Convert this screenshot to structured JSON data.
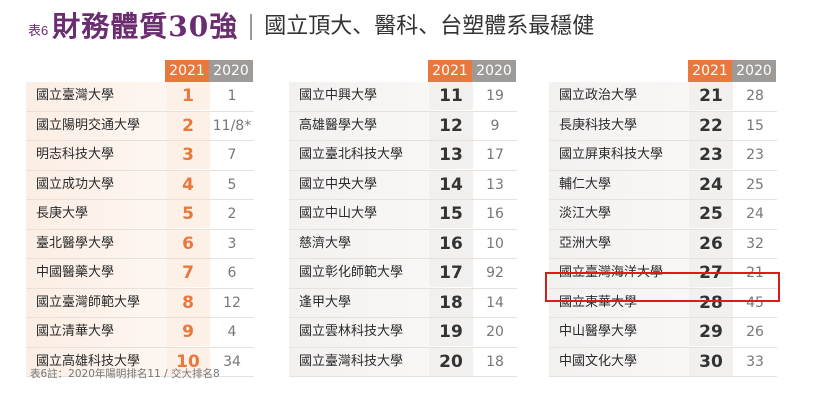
{
  "header": {
    "tag": "表6",
    "title": "財務體質30強",
    "subtitle": "國立頂大、醫科、台塑體系最穩健"
  },
  "years": {
    "current": "2021",
    "previous": "2020"
  },
  "tables": [
    {
      "rows": [
        {
          "name": "國立臺灣大學",
          "rank": "1",
          "prev": "1"
        },
        {
          "name": "國立陽明交通大學",
          "rank": "2",
          "prev": "11/8*"
        },
        {
          "name": "明志科技大學",
          "rank": "3",
          "prev": "7"
        },
        {
          "name": "國立成功大學",
          "rank": "4",
          "prev": "5"
        },
        {
          "name": "長庚大學",
          "rank": "5",
          "prev": "2"
        },
        {
          "name": "臺北醫學大學",
          "rank": "6",
          "prev": "3"
        },
        {
          "name": "中國醫藥大學",
          "rank": "7",
          "prev": "6"
        },
        {
          "name": "國立臺灣師範大學",
          "rank": "8",
          "prev": "12"
        },
        {
          "name": "國立清華大學",
          "rank": "9",
          "prev": "4"
        },
        {
          "name": "國立高雄科技大學",
          "rank": "10",
          "prev": "34"
        }
      ]
    },
    {
      "rows": [
        {
          "name": "國立中興大學",
          "rank": "11",
          "prev": "19"
        },
        {
          "name": "高雄醫學大學",
          "rank": "12",
          "prev": "9"
        },
        {
          "name": "國立臺北科技大學",
          "rank": "13",
          "prev": "17"
        },
        {
          "name": "國立中央大學",
          "rank": "14",
          "prev": "13"
        },
        {
          "name": "國立中山大學",
          "rank": "15",
          "prev": "16"
        },
        {
          "name": "慈濟大學",
          "rank": "16",
          "prev": "10"
        },
        {
          "name": "國立彰化師範大學",
          "rank": "17",
          "prev": "92"
        },
        {
          "name": "逢甲大學",
          "rank": "18",
          "prev": "14"
        },
        {
          "name": "國立雲林科技大學",
          "rank": "19",
          "prev": "20"
        },
        {
          "name": "國立臺灣科技大學",
          "rank": "20",
          "prev": "18"
        }
      ]
    },
    {
      "rows": [
        {
          "name": "國立政治大學",
          "rank": "21",
          "prev": "28"
        },
        {
          "name": "長庚科技大學",
          "rank": "22",
          "prev": "15"
        },
        {
          "name": "國立屏東科技大學",
          "rank": "23",
          "prev": "23"
        },
        {
          "name": "輔仁大學",
          "rank": "24",
          "prev": "25"
        },
        {
          "name": "淡江大學",
          "rank": "25",
          "prev": "24"
        },
        {
          "name": "亞洲大學",
          "rank": "26",
          "prev": "32"
        },
        {
          "name": "國立臺灣海洋大學",
          "rank": "27",
          "prev": "21"
        },
        {
          "name": "國立東華大學",
          "rank": "28",
          "prev": "45"
        },
        {
          "name": "中山醫學大學",
          "rank": "29",
          "prev": "26"
        },
        {
          "name": "中國文化大學",
          "rank": "30",
          "prev": "33"
        }
      ]
    }
  ],
  "footnote": "表6註：2020年陽明排名11 / 交大排名8",
  "colors": {
    "current_year": "#e8783d",
    "previous_year": "#9e9a98",
    "title": "#6a2d6f",
    "highlight": "#e0191b"
  }
}
